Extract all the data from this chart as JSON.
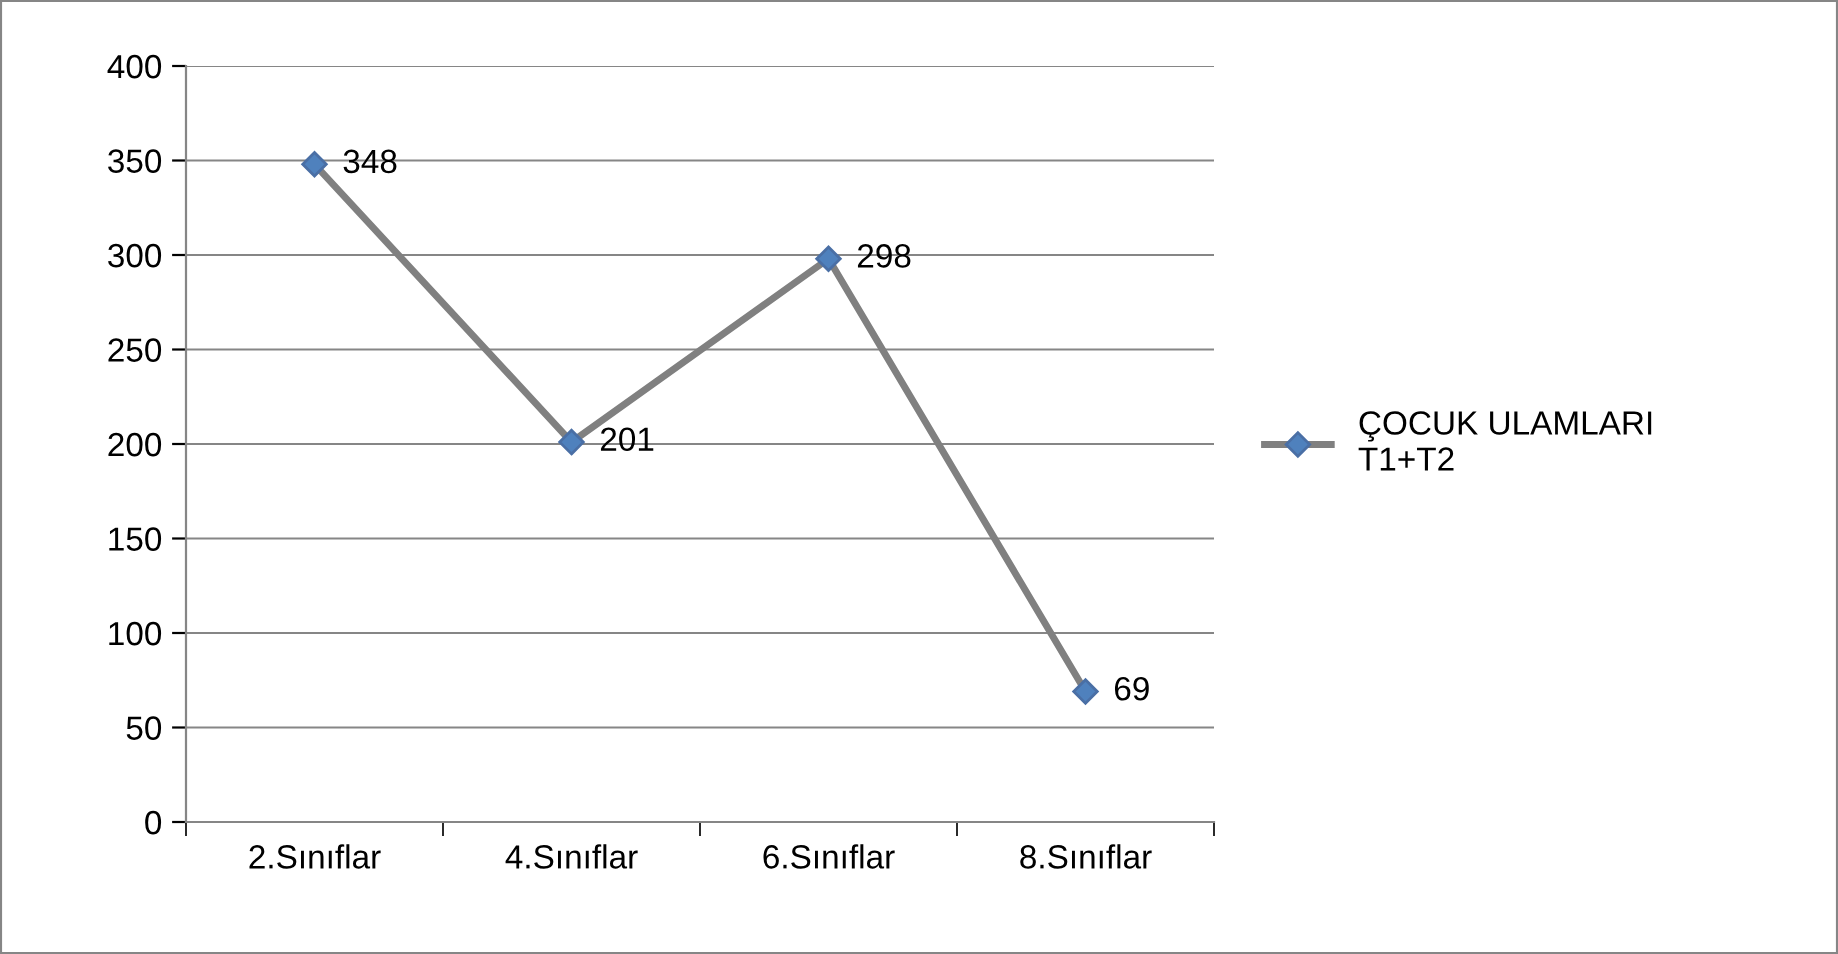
{
  "chart_data": {
    "type": "line",
    "categories": [
      "2.Sınıflar",
      "4.Sınıflar",
      "6.Sınıflar",
      "8.Sınıflar"
    ],
    "series": [
      {
        "name": "ÇOCUK ULAMLARI T1+T2",
        "color": "#808080",
        "values": [
          348,
          201,
          298,
          69
        ]
      }
    ],
    "ylim": [
      0,
      400
    ],
    "yticks": [
      0,
      50,
      100,
      150,
      200,
      250,
      300,
      350,
      400
    ],
    "grid": "y",
    "legend": "right",
    "marker": "diamond",
    "line_style": "solid",
    "data_labels": true
  }
}
